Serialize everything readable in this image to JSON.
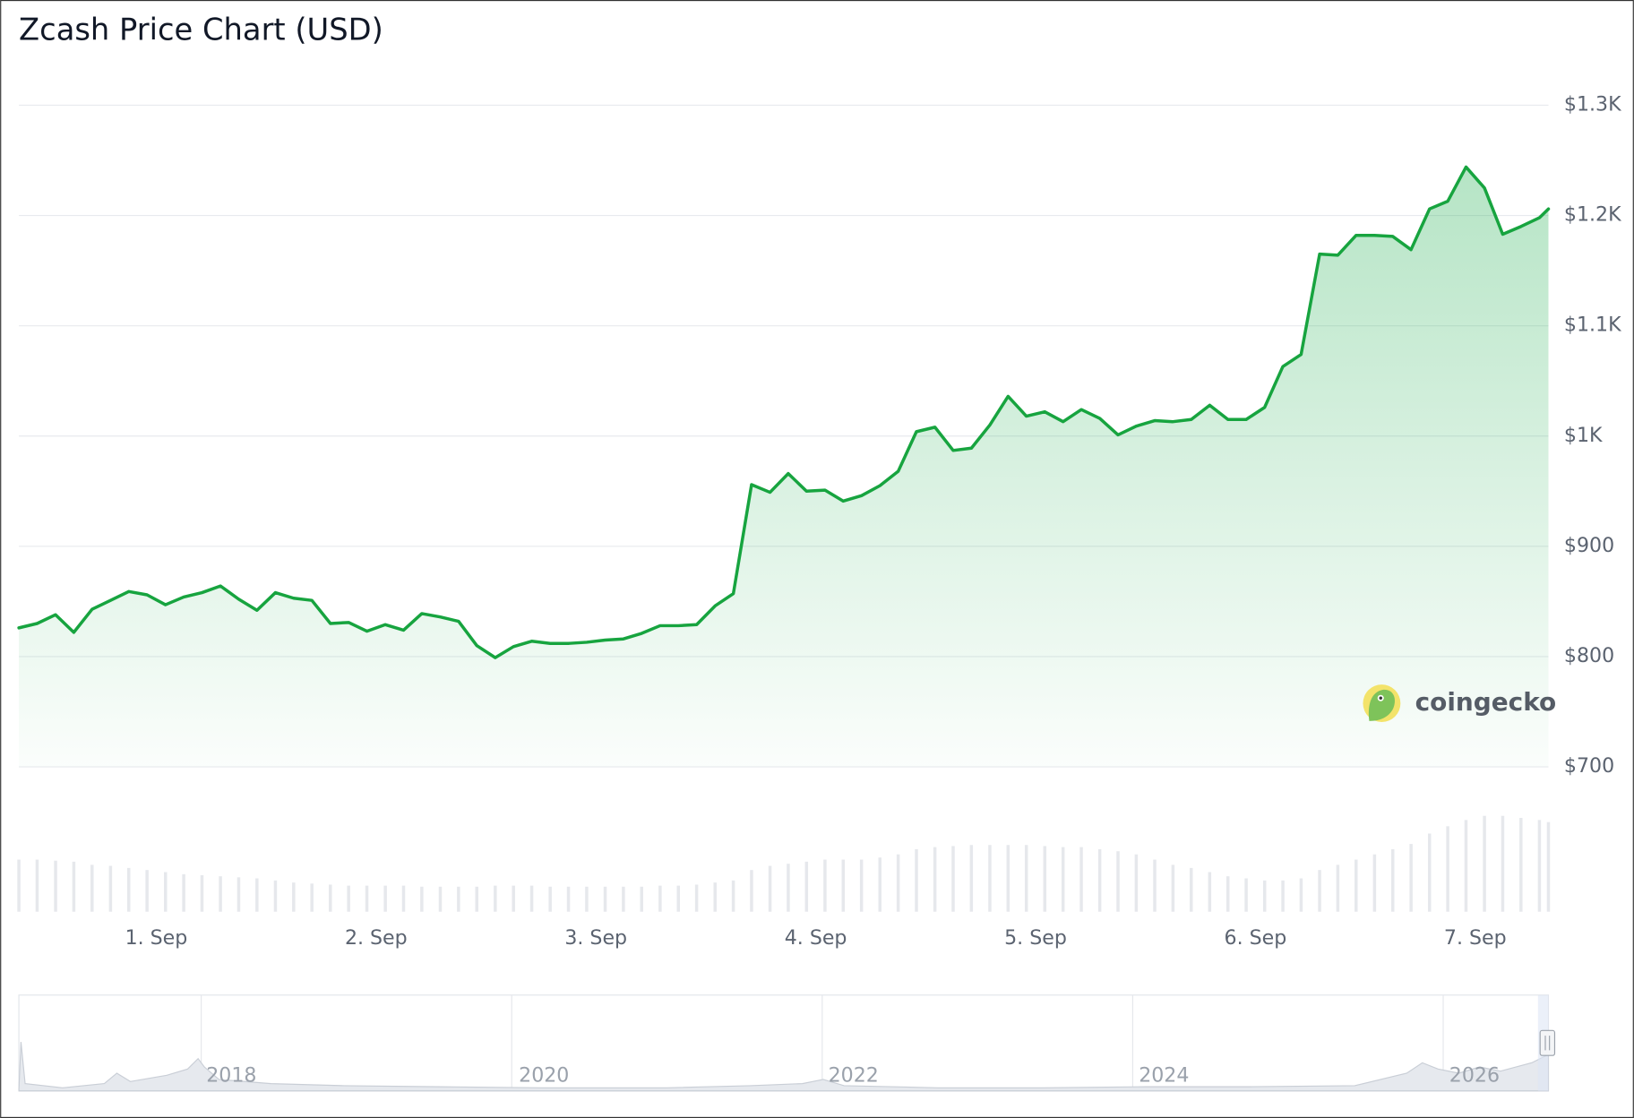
{
  "chart_data": {
    "type": "line",
    "title": "Zcash Price Chart (USD)",
    "color": "#17a43f",
    "x": [
      0.375,
      0.458,
      0.542,
      0.625,
      0.708,
      0.792,
      0.875,
      0.958,
      1.042,
      1.125,
      1.208,
      1.292,
      1.375,
      1.458,
      1.542,
      1.625,
      1.708,
      1.792,
      1.875,
      1.958,
      2.042,
      2.125,
      2.208,
      2.292,
      2.375,
      2.458,
      2.542,
      2.625,
      2.708,
      2.792,
      2.875,
      2.958,
      3.042,
      3.125,
      3.208,
      3.292,
      3.375,
      3.458,
      3.542,
      3.625,
      3.708,
      3.792,
      3.875,
      3.958,
      4.042,
      4.125,
      4.208,
      4.292,
      4.375,
      4.458,
      4.542,
      4.625,
      4.708,
      4.792,
      4.875,
      4.958,
      5.042,
      5.125,
      5.208,
      5.292,
      5.375,
      5.458,
      5.542,
      5.625,
      5.708,
      5.792,
      5.875,
      5.958,
      6.042,
      6.125,
      6.208,
      6.292,
      6.375,
      6.458,
      6.542,
      6.625,
      6.708,
      6.792,
      6.875,
      6.958,
      7.042,
      7.125,
      7.208,
      7.292,
      7.333
    ],
    "values": [
      826,
      830,
      838,
      822,
      843,
      851,
      859,
      856,
      847,
      854,
      858,
      864,
      852,
      842,
      858,
      853,
      851,
      830,
      831,
      823,
      829,
      824,
      839,
      836,
      832,
      810,
      799,
      809,
      814,
      812,
      812,
      813,
      815,
      816,
      821,
      828,
      828,
      829,
      846,
      857,
      956,
      949,
      966,
      950,
      951,
      941,
      946,
      955,
      968,
      1004,
      1008,
      987,
      989,
      1010,
      1036,
      1018,
      1022,
      1013,
      1024,
      1016,
      1001,
      1009,
      1014,
      1013,
      1015,
      1028,
      1015,
      1015,
      1026,
      1063,
      1074,
      1165,
      1164,
      1182,
      1182,
      1181,
      1169,
      1206,
      1213,
      1244,
      1225,
      1183,
      1190,
      1198,
      1206
    ],
    "xlim": [
      0.375,
      7.333
    ],
    "xticks": [
      {
        "value": 1,
        "label": "1. Sep"
      },
      {
        "value": 2,
        "label": "2. Sep"
      },
      {
        "value": 3,
        "label": "3. Sep"
      },
      {
        "value": 4,
        "label": "4. Sep"
      },
      {
        "value": 5,
        "label": "5. Sep"
      },
      {
        "value": 6,
        "label": "6. Sep"
      },
      {
        "value": 7,
        "label": "7. Sep"
      }
    ],
    "ylim": [
      700,
      1300
    ],
    "yticks": [
      {
        "value": 700,
        "label": "$700"
      },
      {
        "value": 800,
        "label": "$800"
      },
      {
        "value": 900,
        "label": "$900"
      },
      {
        "value": 1000,
        "label": "$1K"
      },
      {
        "value": 1100,
        "label": "$1.1K"
      },
      {
        "value": 1200,
        "label": "$1.2K"
      },
      {
        "value": 1300,
        "label": "$1.3K"
      }
    ],
    "grid": true,
    "volume": {
      "ylim": [
        0,
        100
      ],
      "values": [
        50,
        50,
        49,
        48,
        45,
        44,
        42,
        40,
        38,
        36,
        35,
        34,
        33,
        32,
        30,
        28,
        27,
        26,
        25,
        25,
        25,
        25,
        24,
        24,
        24,
        24,
        25,
        25,
        25,
        24,
        24,
        24,
        24,
        24,
        24,
        25,
        25,
        26,
        28,
        30,
        40,
        44,
        46,
        48,
        50,
        50,
        50,
        52,
        55,
        60,
        62,
        63,
        64,
        64,
        64,
        64,
        63,
        62,
        62,
        60,
        58,
        55,
        50,
        45,
        42,
        38,
        34,
        32,
        30,
        30,
        32,
        40,
        45,
        50,
        55,
        60,
        65,
        75,
        82,
        88,
        92,
        92,
        90,
        88,
        86
      ]
    },
    "watermark": "coingecko",
    "navigator": {
      "labels": [
        "2018",
        "2020",
        "2022",
        "2024",
        "2026"
      ]
    }
  }
}
